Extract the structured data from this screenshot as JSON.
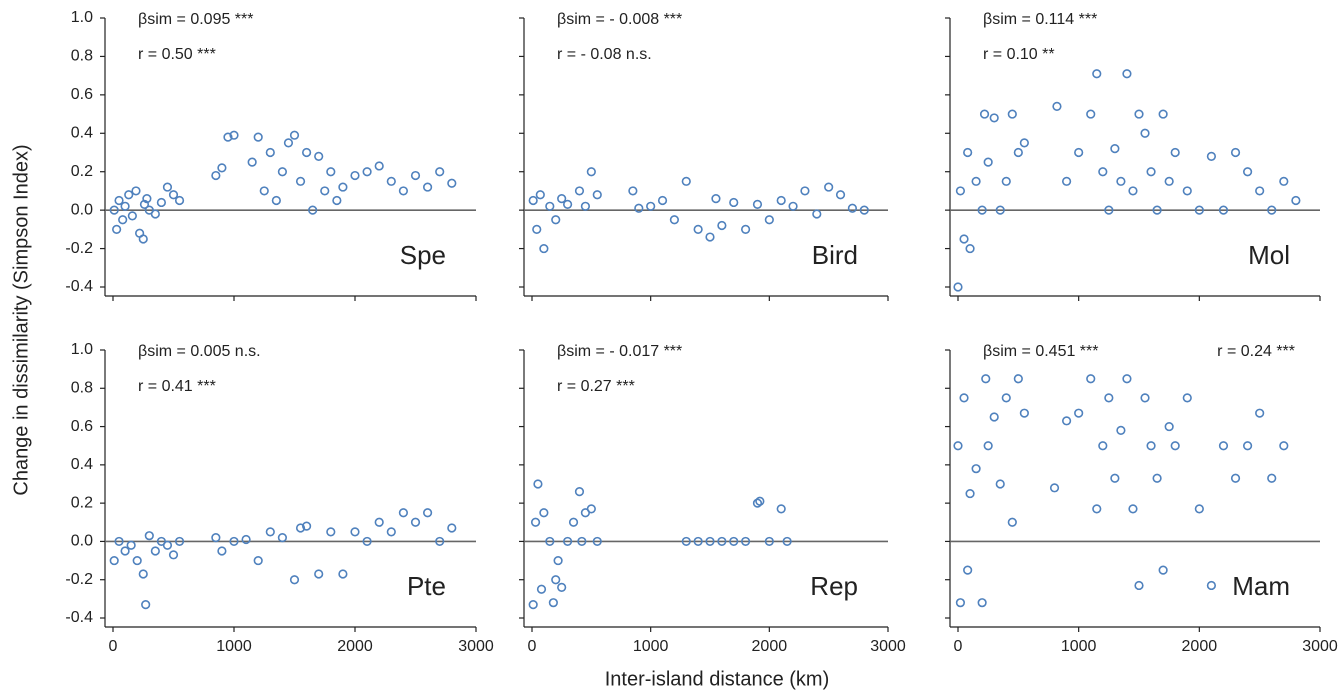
{
  "chart_data": [
    {
      "type": "scatter",
      "label": "Spe",
      "annotations": [
        "βsim = 0.095 ***",
        "r = 0.50 ***"
      ],
      "ylabel": "Change in dissimilarity (Simpson Index)",
      "color": "#4f81bd",
      "hline": 0,
      "xlim": [
        0,
        3000
      ],
      "xticks": [
        0,
        1000,
        2000,
        3000
      ],
      "ylim": [
        -0.4,
        1.0
      ],
      "yticks": [
        {
          "value": -0.4,
          "label": "-0.4"
        },
        {
          "value": -0.2,
          "label": "-0.2"
        },
        {
          "value": 0,
          "label": "0.0"
        },
        {
          "value": 0.2,
          "label": "0.2"
        },
        {
          "value": 0.4,
          "label": "0.4"
        },
        {
          "value": 0.6,
          "label": "0.6"
        },
        {
          "value": 0.8,
          "label": "0.8"
        },
        {
          "value": 1.0,
          "label": "1.0"
        }
      ],
      "x": [
        10,
        30,
        50,
        80,
        100,
        130,
        160,
        190,
        220,
        250,
        260,
        280,
        300,
        350,
        400,
        450,
        500,
        550,
        850,
        900,
        950,
        1000,
        1150,
        1200,
        1250,
        1300,
        1350,
        1400,
        1450,
        1500,
        1550,
        1600,
        1650,
        1700,
        1750,
        1800,
        1850,
        1900,
        2000,
        2100,
        2200,
        2300,
        2400,
        2500,
        2600,
        2700,
        2800
      ],
      "values": [
        0,
        -0.1,
        0.05,
        -0.05,
        0.02,
        0.08,
        -0.03,
        0.1,
        -0.12,
        -0.15,
        0.03,
        0.06,
        0,
        -0.02,
        0.04,
        0.12,
        0.08,
        0.05,
        0.18,
        0.22,
        0.38,
        0.39,
        0.25,
        0.38,
        0.1,
        0.3,
        0.05,
        0.2,
        0.35,
        0.39,
        0.15,
        0.3,
        0,
        0.28,
        0.1,
        0.2,
        0.05,
        0.12,
        0.18,
        0.2,
        0.23,
        0.15,
        0.1,
        0.18,
        0.12,
        0.2,
        0.14
      ]
    },
    {
      "type": "scatter",
      "label": "Bird",
      "annotations": [
        "βsim = - 0.008 ***",
        "r = - 0.08 n.s."
      ],
      "color": "#4f81bd",
      "hline": 0,
      "xlim": [
        0,
        3000
      ],
      "xticks": [
        0,
        1000,
        2000,
        3000
      ],
      "ylim": [
        -0.4,
        1.0
      ],
      "yticks": [
        -0.4,
        -0.2,
        0,
        0.2,
        0.4,
        0.6,
        0.8,
        1.0
      ],
      "x": [
        10,
        40,
        70,
        100,
        150,
        200,
        250,
        300,
        400,
        450,
        500,
        550,
        850,
        900,
        1000,
        1100,
        1200,
        1300,
        1400,
        1500,
        1550,
        1600,
        1700,
        1800,
        1900,
        2000,
        2100,
        2200,
        2300,
        2400,
        2500,
        2600,
        2700,
        2800
      ],
      "values": [
        0.05,
        -0.1,
        0.08,
        -0.2,
        0.02,
        -0.05,
        0.06,
        0.03,
        0.1,
        0.02,
        0.2,
        0.08,
        0.1,
        0.01,
        0.02,
        0.05,
        -0.05,
        0.15,
        -0.1,
        -0.14,
        0.06,
        -0.08,
        0.04,
        -0.1,
        0.03,
        -0.05,
        0.05,
        0.02,
        0.1,
        -0.02,
        0.12,
        0.08,
        0.01,
        0
      ]
    },
    {
      "type": "scatter",
      "label": "Mol",
      "annotations": [
        "βsim = 0.114 ***",
        "r = 0.10 **"
      ],
      "color": "#4f81bd",
      "hline": 0,
      "xlim": [
        0,
        3000
      ],
      "xticks": [
        0,
        1000,
        2000,
        3000
      ],
      "ylim": [
        -0.4,
        1.0
      ],
      "yticks": [
        -0.4,
        -0.2,
        0,
        0.2,
        0.4,
        0.6,
        0.8,
        1.0
      ],
      "x": [
        0,
        20,
        50,
        80,
        100,
        150,
        200,
        220,
        250,
        300,
        350,
        400,
        450,
        500,
        550,
        820,
        900,
        1000,
        1100,
        1150,
        1200,
        1250,
        1300,
        1350,
        1400,
        1450,
        1500,
        1550,
        1600,
        1650,
        1700,
        1750,
        1800,
        1900,
        2000,
        2100,
        2200,
        2300,
        2400,
        2500,
        2600,
        2700,
        2800
      ],
      "values": [
        -0.4,
        0.1,
        -0.15,
        0.3,
        -0.2,
        0.15,
        0,
        0.5,
        0.25,
        0.48,
        0,
        0.15,
        0.5,
        0.3,
        0.35,
        0.54,
        0.15,
        0.3,
        0.5,
        0.71,
        0.2,
        0,
        0.32,
        0.15,
        0.71,
        0.1,
        0.5,
        0.4,
        0.2,
        0,
        0.5,
        0.15,
        0.3,
        0.1,
        0,
        0.28,
        0,
        0.3,
        0.2,
        0.1,
        0,
        0.15,
        0.05
      ]
    },
    {
      "type": "scatter",
      "label": "Pte",
      "annotations": [
        "βsim = 0.005 n.s.",
        "r = 0.41 ***"
      ],
      "color": "#4f81bd",
      "hline": 0,
      "xlim": [
        0,
        3000
      ],
      "xticks": [
        0,
        1000,
        2000,
        3000
      ],
      "ylim": [
        -0.4,
        1.0
      ],
      "yticks": [
        {
          "value": -0.4,
          "label": "-0.4"
        },
        {
          "value": -0.2,
          "label": "-0.2"
        },
        {
          "value": 0,
          "label": "0.0"
        },
        {
          "value": 0.2,
          "label": "0.2"
        },
        {
          "value": 0.4,
          "label": "0.4"
        },
        {
          "value": 0.6,
          "label": "0.6"
        },
        {
          "value": 0.8,
          "label": "0.8"
        },
        {
          "value": 1.0,
          "label": "1.0"
        }
      ],
      "x": [
        10,
        50,
        100,
        150,
        200,
        250,
        270,
        300,
        350,
        400,
        450,
        500,
        550,
        850,
        900,
        1000,
        1100,
        1200,
        1300,
        1400,
        1500,
        1550,
        1600,
        1700,
        1800,
        1900,
        2000,
        2100,
        2200,
        2300,
        2400,
        2500,
        2600,
        2700,
        2800
      ],
      "values": [
        -0.1,
        0,
        -0.05,
        -0.02,
        -0.1,
        -0.17,
        -0.33,
        0.03,
        -0.05,
        0,
        -0.02,
        -0.07,
        0,
        0.02,
        -0.05,
        0,
        0.01,
        -0.1,
        0.05,
        0.02,
        -0.2,
        0.07,
        0.08,
        -0.17,
        0.05,
        -0.17,
        0.05,
        0,
        0.1,
        0.05,
        0.15,
        0.1,
        0.15,
        0,
        0.07
      ]
    },
    {
      "type": "scatter",
      "label": "Rep",
      "annotations": [
        "βsim = - 0.017 ***",
        "r = 0.27 ***"
      ],
      "xlabel": "Inter-island distance (km)",
      "color": "#4f81bd",
      "hline": 0,
      "xlim": [
        0,
        3000
      ],
      "xticks": [
        0,
        1000,
        2000,
        3000
      ],
      "ylim": [
        -0.4,
        1.0
      ],
      "yticks": [
        -0.4,
        -0.2,
        0,
        0.2,
        0.4,
        0.6,
        0.8,
        1.0
      ],
      "x": [
        10,
        30,
        50,
        80,
        100,
        150,
        180,
        200,
        220,
        250,
        300,
        350,
        400,
        420,
        450,
        500,
        550,
        1300,
        1400,
        1500,
        1600,
        1700,
        1800,
        1900,
        1920,
        2000,
        2100,
        2150
      ],
      "values": [
        -0.33,
        0.1,
        0.3,
        -0.25,
        0.15,
        0,
        -0.32,
        -0.2,
        -0.1,
        -0.24,
        0,
        0.1,
        0.26,
        0,
        0.15,
        0.17,
        0,
        0,
        0,
        0,
        0,
        0,
        0,
        0.2,
        0.21,
        0,
        0.17,
        0
      ]
    },
    {
      "type": "scatter",
      "label": "Mam",
      "annotations": [
        "βsim = 0.451 ***",
        "r = 0.24 ***"
      ],
      "color": "#4f81bd",
      "hline": 0,
      "xlim": [
        0,
        3000
      ],
      "xticks": [
        0,
        1000,
        2000,
        3000
      ],
      "ylim": [
        -0.4,
        1.0
      ],
      "yticks": [
        -0.4,
        -0.2,
        0,
        0.2,
        0.4,
        0.6,
        0.8,
        1.0
      ],
      "x": [
        0,
        20,
        50,
        80,
        100,
        150,
        200,
        230,
        250,
        300,
        350,
        400,
        450,
        500,
        550,
        800,
        900,
        1000,
        1100,
        1150,
        1200,
        1250,
        1300,
        1350,
        1400,
        1450,
        1500,
        1550,
        1600,
        1650,
        1700,
        1750,
        1800,
        1900,
        2000,
        2100,
        2200,
        2300,
        2400,
        2500,
        2600,
        2700
      ],
      "values": [
        0.5,
        -0.32,
        0.75,
        -0.15,
        0.25,
        0.38,
        -0.32,
        0.85,
        0.5,
        0.65,
        0.3,
        0.75,
        0.1,
        0.85,
        0.67,
        0.28,
        0.63,
        0.67,
        0.85,
        0.17,
        0.5,
        0.75,
        0.33,
        0.58,
        0.85,
        0.17,
        -0.23,
        0.75,
        0.5,
        0.33,
        -0.15,
        0.6,
        0.5,
        0.75,
        0.17,
        -0.23,
        0.5,
        0.33,
        0.5,
        0.67,
        0.33,
        0.5
      ]
    }
  ]
}
